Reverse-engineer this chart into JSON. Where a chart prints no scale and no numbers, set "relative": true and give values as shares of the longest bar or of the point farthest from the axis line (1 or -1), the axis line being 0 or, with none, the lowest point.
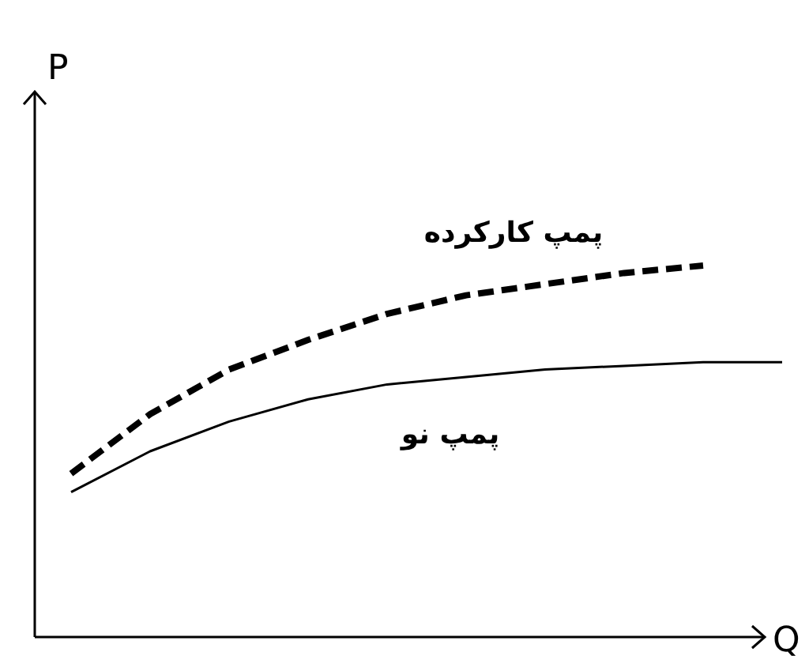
{
  "chart_data": {
    "type": "line",
    "relative": true,
    "annotations": [
      "P",
      "Q"
    ],
    "categories": [
      null,
      null,
      null,
      null,
      null,
      null,
      null,
      null,
      null,
      null
    ],
    "series": [
      {
        "name": "پمپ کارکرده",
        "color": "#000000",
        "line_style": "dashed",
        "values": [
          0.44,
          0.6,
          0.72,
          0.8,
          0.87,
          0.92,
          0.95,
          0.98,
          1,
          null
        ]
      },
      {
        "name": "پمپ نو",
        "color": "#000000",
        "line_style": "solid",
        "values": [
          0.39,
          0.5,
          0.58,
          0.64,
          0.68,
          0.7,
          0.72,
          0.73,
          0.74,
          0.74
        ]
      }
    ]
  }
}
